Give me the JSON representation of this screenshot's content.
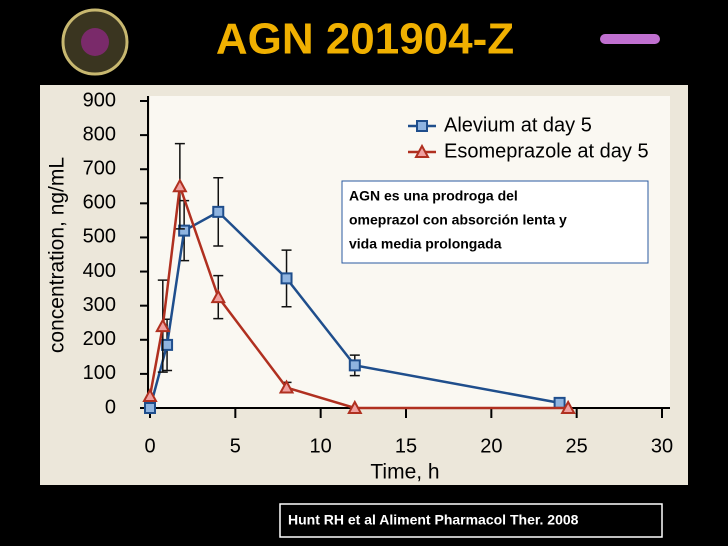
{
  "chart_data": {
    "type": "line",
    "title": "AGN 201904-Z",
    "xlabel": "Time, h",
    "ylabel": "concentration, ng/mL",
    "xlim": [
      0,
      30
    ],
    "xticks": [
      0,
      5,
      10,
      15,
      20,
      25,
      30
    ],
    "ylim": [
      0,
      900
    ],
    "yticks": [
      0,
      100,
      200,
      300,
      400,
      500,
      600,
      700,
      800,
      900
    ],
    "legend": "upper right",
    "series": [
      {
        "name": "Alevium at day 5",
        "color": "#1f4e8c",
        "marker": "square",
        "x": [
          0,
          1,
          2,
          4,
          8,
          12,
          24
        ],
        "values": [
          0,
          185,
          520,
          575,
          380,
          125,
          15
        ],
        "errors": [
          null,
          75,
          88,
          100,
          83,
          30,
          null
        ]
      },
      {
        "name": "Esomeprazole at day 5",
        "color": "#b03020",
        "marker": "triangle",
        "x": [
          0,
          0.75,
          1.75,
          4,
          8,
          12,
          24.5
        ],
        "values": [
          35,
          240,
          650,
          325,
          60,
          0,
          0
        ],
        "errors": [
          null,
          135,
          125,
          63,
          15,
          null,
          null
        ]
      }
    ],
    "annotation": [
      "AGN es una prodroga del",
      "omeprazol con absorción lenta y",
      "vida media prolongada"
    ],
    "citation": "Hunt RH et al  Aliment Pharmacol Ther. 2008"
  }
}
